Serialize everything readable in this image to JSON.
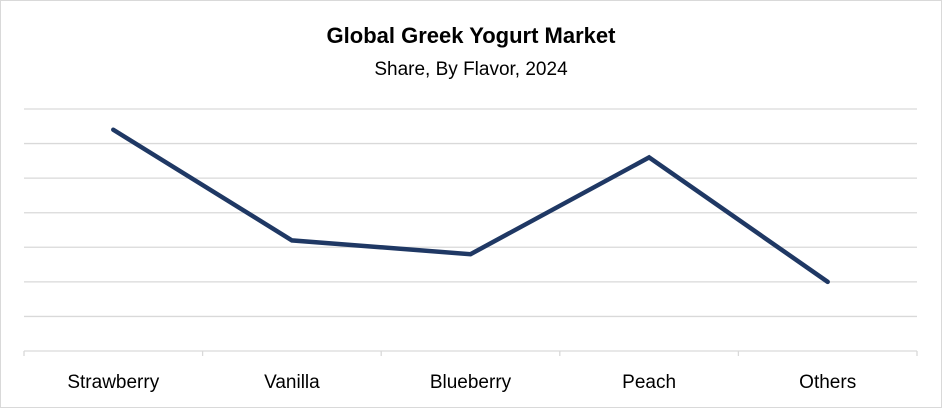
{
  "chart_data": {
    "type": "line",
    "title": "Global Greek Yogurt Market",
    "subtitle": "Share, By Flavor, 2024",
    "categories": [
      "Strawberry",
      "Vanilla",
      "Blueberry",
      "Peach",
      "Others"
    ],
    "series": [
      {
        "name": "Share",
        "values": [
          6.4,
          3.2,
          2.8,
          5.6,
          2.0
        ],
        "color": "#1f3864"
      }
    ],
    "xlabel": "",
    "ylabel": "",
    "ylim": [
      0,
      7
    ],
    "y_gridlines": 7,
    "grid": true,
    "y_tick_labels_shown": false,
    "legend": "none"
  }
}
